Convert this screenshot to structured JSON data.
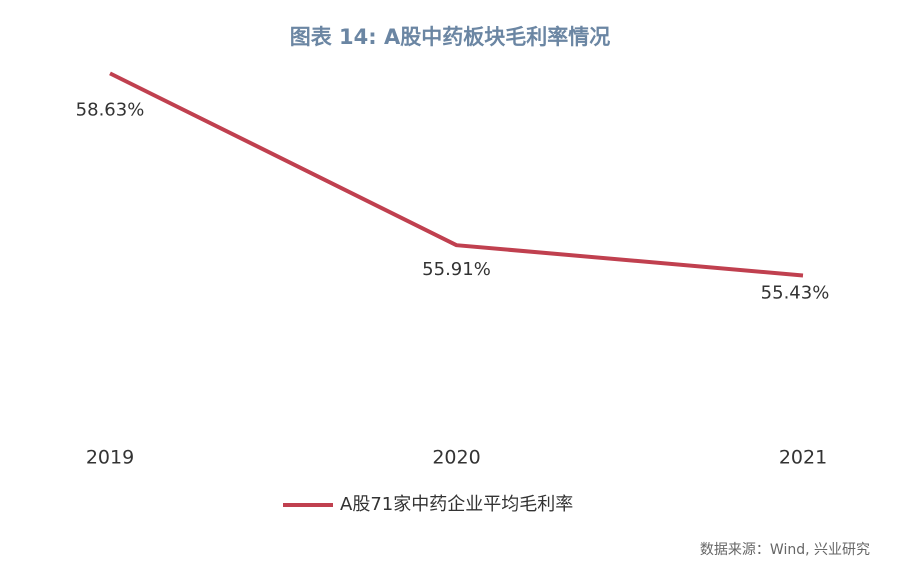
{
  "chart_data": {
    "type": "line",
    "title": "图表 14: A股中药板块毛利率情况",
    "categories": [
      "2019",
      "2020",
      "2021"
    ],
    "series": [
      {
        "name": "A股71家中药企业平均毛利率",
        "color": "#c0404f",
        "values": [
          58.63,
          55.91,
          55.43
        ],
        "value_labels": [
          "58.63%",
          "55.91%",
          "55.43%"
        ]
      }
    ],
    "ylim": [
      53,
      59
    ],
    "source": "数据来源：Wind, 兴业研究"
  }
}
